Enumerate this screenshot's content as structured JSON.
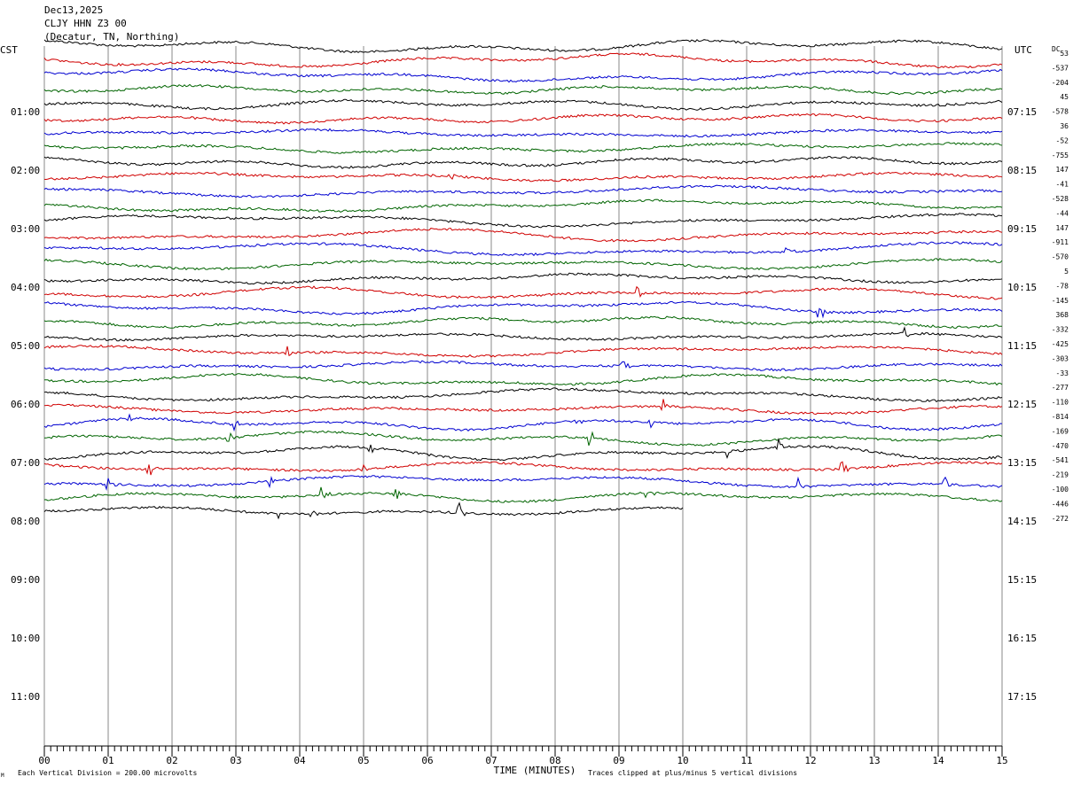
{
  "header": {
    "date": "Dec13,2025",
    "station": "CLJY HHN Z3 00",
    "location": "(Decatur, TN, Northing)"
  },
  "chart_data": {
    "type": "line",
    "subtype": "helicorder",
    "left_timezone_label": "CST",
    "right_timezone_label": "UTC",
    "dc_label": "DC",
    "xlabel": "TIME (MINUTES)",
    "xlim": [
      0,
      15
    ],
    "x_ticks": [
      "00",
      "01",
      "02",
      "03",
      "04",
      "05",
      "06",
      "07",
      "08",
      "09",
      "10",
      "11",
      "12",
      "13",
      "14",
      "15"
    ],
    "left_hour_labels": [
      "01:00",
      "02:00",
      "03:00",
      "04:00",
      "05:00",
      "06:00",
      "07:00",
      "08:00",
      "09:00",
      "10:00",
      "11:00"
    ],
    "right_hour_labels": [
      "07:15",
      "08:15",
      "09:15",
      "10:15",
      "11:15",
      "12:15",
      "13:15",
      "14:15",
      "15:15",
      "16:15",
      "17:15"
    ],
    "trace_colors": [
      "#000000",
      "#d00000",
      "#0000d0",
      "#006400"
    ],
    "dc_offsets": [
      53,
      -537,
      -204,
      45,
      -578,
      36,
      -52,
      -755,
      147,
      -41,
      -528,
      -44,
      147,
      -911,
      -570,
      5,
      -78,
      -145,
      368,
      -332,
      -425,
      -303,
      -33,
      -277,
      -110,
      -814,
      -169,
      -470,
      -541,
      -219,
      -100,
      -446,
      -272
    ],
    "traces_total": 33,
    "last_trace_end_minute": 10,
    "footer_left": "Each Vertical Division =  200.00 microvolts",
    "footer_right": "Traces clipped at plus/minus 5 vertical divisions",
    "corner_mark": "M",
    "events": [
      {
        "trace": 9,
        "minute": 6.35
      },
      {
        "trace": 14,
        "minute": 11.6
      },
      {
        "trace": 17,
        "minute": 9.3
      },
      {
        "trace": 18,
        "minute": 12.15
      },
      {
        "trace": 20,
        "minute": 13.5
      },
      {
        "trace": 21,
        "minute": 3.8
      },
      {
        "trace": 22,
        "minute": 9.05
      },
      {
        "trace": 25,
        "minute": 9.7
      },
      {
        "trace": 26,
        "minute": 1.3
      },
      {
        "trace": 26,
        "minute": 2.95
      },
      {
        "trace": 26,
        "minute": 8.35
      },
      {
        "trace": 26,
        "minute": 9.5
      },
      {
        "trace": 27,
        "minute": 2.9
      },
      {
        "trace": 27,
        "minute": 8.55
      },
      {
        "trace": 28,
        "minute": 5.1
      },
      {
        "trace": 28,
        "minute": 10.7
      },
      {
        "trace": 28,
        "minute": 11.5
      },
      {
        "trace": 29,
        "minute": 1.65
      },
      {
        "trace": 29,
        "minute": 5.0
      },
      {
        "trace": 29,
        "minute": 12.5
      },
      {
        "trace": 30,
        "minute": 1.0
      },
      {
        "trace": 30,
        "minute": 3.55
      },
      {
        "trace": 30,
        "minute": 11.8
      },
      {
        "trace": 30,
        "minute": 14.1
      },
      {
        "trace": 31,
        "minute": 4.35
      },
      {
        "trace": 31,
        "minute": 5.5
      },
      {
        "trace": 31,
        "minute": 9.45
      },
      {
        "trace": 32,
        "minute": 3.7
      },
      {
        "trace": 32,
        "minute": 4.2
      },
      {
        "trace": 32,
        "minute": 6.5
      }
    ]
  }
}
